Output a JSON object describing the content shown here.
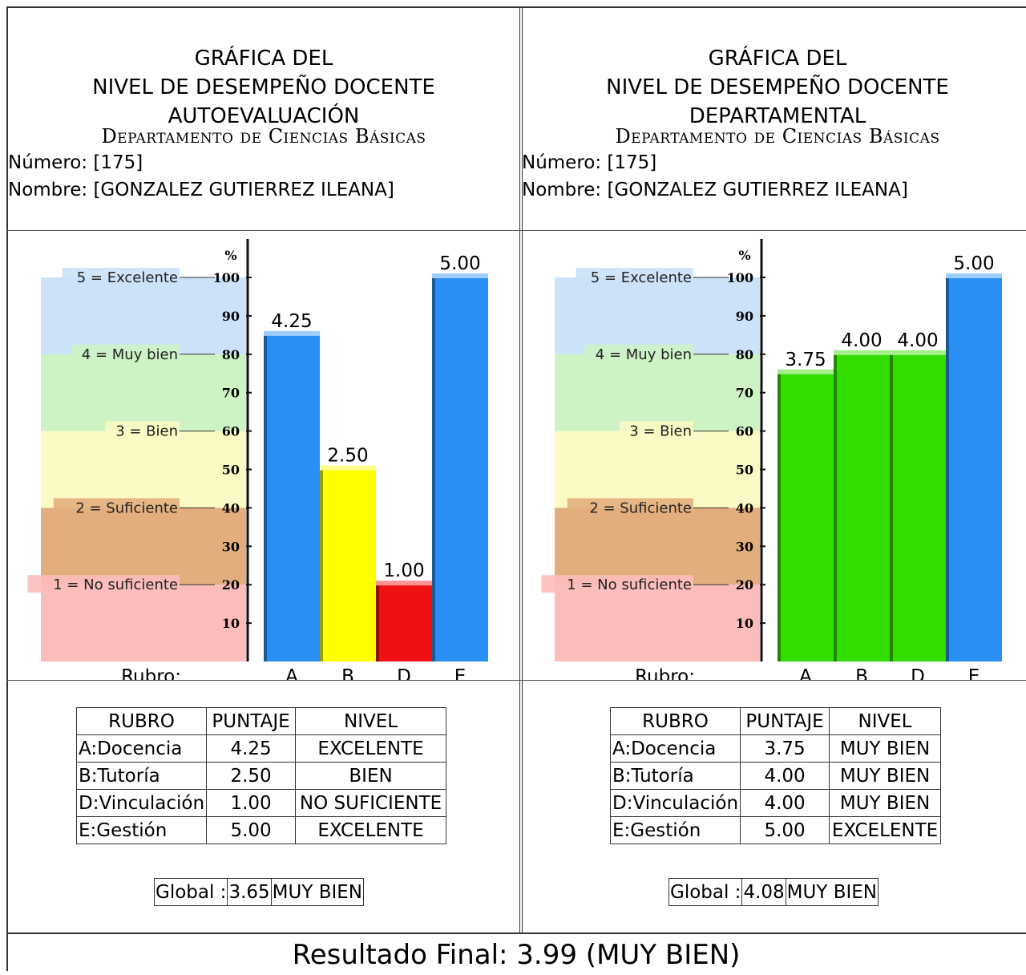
{
  "panels": [
    {
      "title_lines": [
        "GRÁFICA DEL",
        "NIVEL DE DESEMPEÑO DOCENTE",
        "AUTOEVALUACIÓN"
      ],
      "department": "Departamento de Ciencias Básicas",
      "numero": "Número: [175]",
      "nombre": "Nombre: [GONZALEZ GUTIERREZ ILEANA]",
      "table_headers": [
        "RUBRO",
        "PUNTAJE",
        "NIVEL"
      ],
      "rows": [
        {
          "rubro": "A:Docencia",
          "puntaje": "4.25",
          "nivel": "EXCELENTE"
        },
        {
          "rubro": "B:Tutoría",
          "puntaje": "2.50",
          "nivel": "BIEN"
        },
        {
          "rubro": "D:Vinculación",
          "puntaje": "1.00",
          "nivel": "NO SUFICIENTE"
        },
        {
          "rubro": "E:Gestión",
          "puntaje": "5.00",
          "nivel": "EXCELENTE"
        }
      ],
      "global_label": "Global :",
      "global_value": "3.65",
      "global_level": "MUY BIEN"
    },
    {
      "title_lines": [
        "GRÁFICA DEL",
        "NIVEL DE DESEMPEÑO DOCENTE",
        "DEPARTAMENTAL"
      ],
      "department": "Departamento de Ciencias Básicas",
      "numero": "Número: [175]",
      "nombre": "Nombre: [GONZALEZ GUTIERREZ ILEANA]",
      "table_headers": [
        "RUBRO",
        "PUNTAJE",
        "NIVEL"
      ],
      "rows": [
        {
          "rubro": "A:Docencia",
          "puntaje": "3.75",
          "nivel": "MUY BIEN"
        },
        {
          "rubro": "B:Tutoría",
          "puntaje": "4.00",
          "nivel": "MUY BIEN"
        },
        {
          "rubro": "D:Vinculación",
          "puntaje": "4.00",
          "nivel": "MUY BIEN"
        },
        {
          "rubro": "E:Gestión",
          "puntaje": "5.00",
          "nivel": "EXCELENTE"
        }
      ],
      "global_label": "Global :",
      "global_value": "4.08",
      "global_level": "MUY BIEN"
    }
  ],
  "final_result": "Resultado Final: 3.99 (MUY BIEN)",
  "chart_data": [
    {
      "type": "bar",
      "ylabel": "%",
      "xlabel": "Rubro:",
      "ylim": [
        0,
        100
      ],
      "yticks": [
        10,
        20,
        30,
        40,
        50,
        60,
        70,
        80,
        90,
        100
      ],
      "categories": [
        "A",
        "B",
        "D",
        "E"
      ],
      "values": [
        4.25,
        2.5,
        1.0,
        5.0
      ],
      "value_labels": [
        "4.25",
        "2.50",
        "1.00",
        "5.00"
      ],
      "bar_colors": [
        "#2a8ff5",
        "#ffff00",
        "#ee1111",
        "#2a8ff5"
      ],
      "bands": [
        {
          "label": "5 = Excelente",
          "from": 80,
          "to": 100,
          "color": "#cce2f8"
        },
        {
          "label": "4 = Muy bien",
          "from": 60,
          "to": 80,
          "color": "#cdf3c4"
        },
        {
          "label": "3 = Bien",
          "from": 40,
          "to": 60,
          "color": "#fbfac4"
        },
        {
          "label": "2 = Suficiente",
          "from": 20,
          "to": 40,
          "color": "#e3ae7e"
        },
        {
          "label": "1 = No suficiente",
          "from": 0,
          "to": 20,
          "color": "#fcbcbc"
        }
      ]
    },
    {
      "type": "bar",
      "ylabel": "%",
      "xlabel": "Rubro:",
      "ylim": [
        0,
        100
      ],
      "yticks": [
        10,
        20,
        30,
        40,
        50,
        60,
        70,
        80,
        90,
        100
      ],
      "categories": [
        "A",
        "B",
        "D",
        "E"
      ],
      "values": [
        3.75,
        4.0,
        4.0,
        5.0
      ],
      "value_labels": [
        "3.75",
        "4.00",
        "4.00",
        "5.00"
      ],
      "bar_colors": [
        "#33dd00",
        "#33dd00",
        "#33dd00",
        "#2a8ff5"
      ],
      "bands": [
        {
          "label": "5 = Excelente",
          "from": 80,
          "to": 100,
          "color": "#cce2f8"
        },
        {
          "label": "4 = Muy bien",
          "from": 60,
          "to": 80,
          "color": "#cdf3c4"
        },
        {
          "label": "3 = Bien",
          "from": 40,
          "to": 60,
          "color": "#fbfac4"
        },
        {
          "label": "2 = Suficiente",
          "from": 20,
          "to": 40,
          "color": "#e3ae7e"
        },
        {
          "label": "1 = No suficiente",
          "from": 0,
          "to": 20,
          "color": "#fcbcbc"
        }
      ]
    }
  ]
}
